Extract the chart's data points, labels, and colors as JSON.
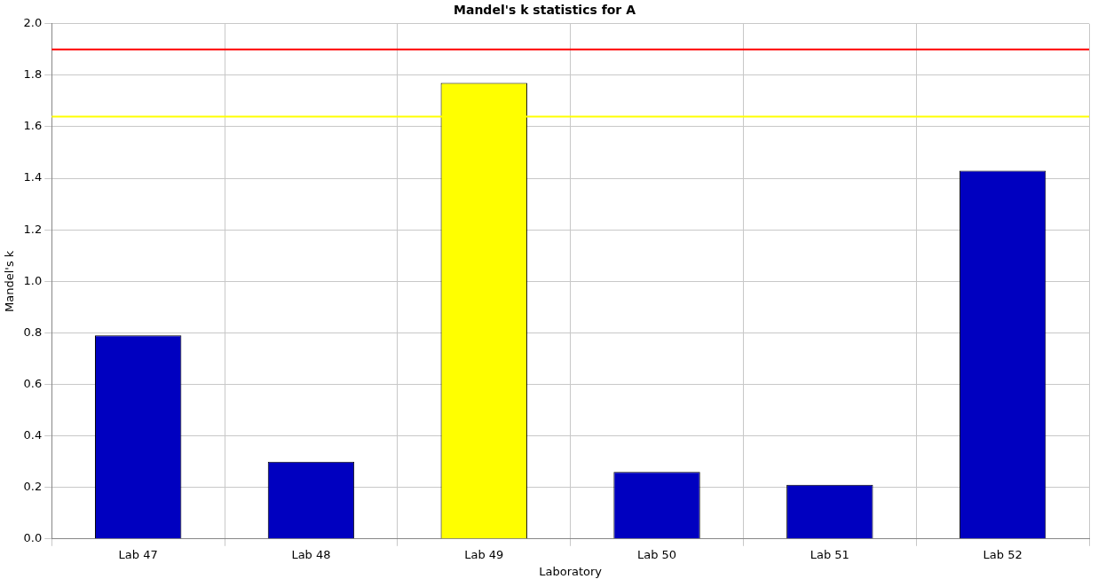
{
  "chart_data": {
    "type": "bar",
    "title": "Mandel's k statistics for A",
    "xlabel": "Laboratory",
    "ylabel": "Mandel's k",
    "categories": [
      "Lab 47",
      "Lab 48",
      "Lab 49",
      "Lab 50",
      "Lab 51",
      "Lab 52"
    ],
    "values": [
      0.79,
      0.3,
      1.77,
      0.26,
      0.21,
      1.43
    ],
    "colors": [
      "#0000c0",
      "#0000c0",
      "#ffff00",
      "#0000c0",
      "#0000c0",
      "#0000c0"
    ],
    "ylim": [
      0,
      2.0
    ],
    "yticks": [
      {
        "value": 0,
        "label": "0.0"
      },
      {
        "value": 0.2,
        "label": "0.2"
      },
      {
        "value": 0.4,
        "label": "0.4"
      },
      {
        "value": 0.6,
        "label": "0.6"
      },
      {
        "value": 0.8,
        "label": "0.8"
      },
      {
        "value": 1.0,
        "label": "1.0"
      },
      {
        "value": 1.2,
        "label": "1.2"
      },
      {
        "value": 1.4,
        "label": "1.4"
      },
      {
        "value": 1.6,
        "label": "1.6"
      },
      {
        "value": 1.8,
        "label": "1.8"
      },
      {
        "value": 2.0,
        "label": "2.0"
      }
    ],
    "ref_lines": [
      {
        "axis": "y",
        "value": 1.9,
        "color": "#ff0000"
      },
      {
        "axis": "y",
        "value": 1.64,
        "color": "#ffff00"
      }
    ],
    "grid": true,
    "legend": false
  }
}
